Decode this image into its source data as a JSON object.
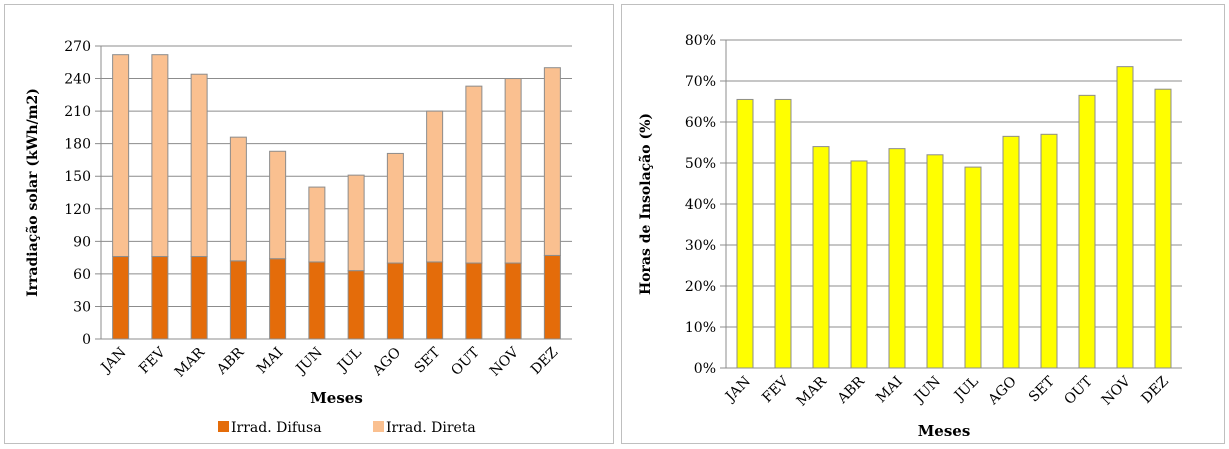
{
  "chart_data": [
    {
      "type": "bar",
      "stacked": true,
      "categories": [
        "JAN",
        "FEV",
        "MAR",
        "ABR",
        "MAI",
        "JUN",
        "JUL",
        "AGO",
        "SET",
        "OUT",
        "NOV",
        "DEZ"
      ],
      "series": [
        {
          "name": "Irrad. Difusa",
          "values": [
            76,
            76,
            76,
            72,
            74,
            71,
            63,
            70,
            71,
            70,
            70,
            77
          ],
          "color": "#e46c0a"
        },
        {
          "name": "Irrad. Direta",
          "values": [
            186,
            186,
            168,
            114,
            99,
            69,
            88,
            101,
            139,
            163,
            170,
            173
          ],
          "color": "#fac090"
        }
      ],
      "xlabel": "Meses",
      "ylabel": "Irradiação solar (kWh/m2)",
      "ylim": [
        0,
        270
      ],
      "yticks": [
        "0",
        "30",
        "60",
        "90",
        "120",
        "150",
        "180",
        "210",
        "240",
        "270"
      ],
      "grid": true,
      "legend": "bottom"
    },
    {
      "type": "bar",
      "categories": [
        "JAN",
        "FEV",
        "MAR",
        "ABR",
        "MAI",
        "JUN",
        "JUL",
        "AGO",
        "SET",
        "OUT",
        "NOV",
        "DEZ"
      ],
      "series": [
        {
          "values": [
            65.5,
            65.5,
            54,
            50.5,
            53.5,
            52,
            49,
            56.5,
            57,
            66.5,
            73.5,
            68
          ],
          "color": "#ffff00"
        }
      ],
      "xlabel": "Meses",
      "ylabel": "Horas de Insolação (%)",
      "ylim": [
        0,
        80
      ],
      "yticks": [
        "0%",
        "10%",
        "20%",
        "30%",
        "40%",
        "50%",
        "60%",
        "70%",
        "80%"
      ],
      "grid": true
    }
  ]
}
